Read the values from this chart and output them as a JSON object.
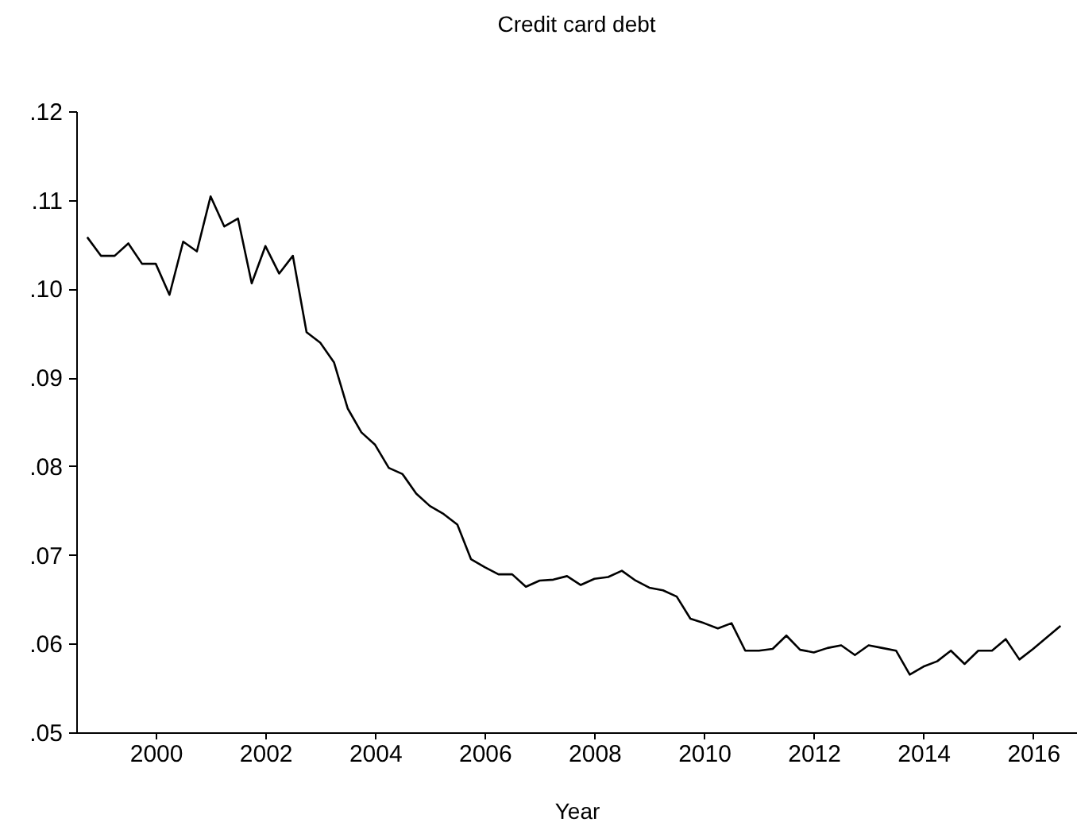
{
  "chart_data": {
    "type": "line",
    "title": "Credit card debt",
    "xlabel": "Year",
    "x": [
      1999,
      1999.25,
      1999.5,
      1999.75,
      2000,
      2000.25,
      2000.5,
      2000.75,
      2001,
      2001.25,
      2001.5,
      2001.75,
      2002,
      2002.25,
      2002.5,
      2002.75,
      2003,
      2003.25,
      2003.5,
      2003.75,
      2004,
      2004.25,
      2004.5,
      2004.75,
      2005,
      2005.25,
      2005.5,
      2005.75,
      2006,
      2006.25,
      2006.5,
      2006.75,
      2007,
      2007.25,
      2007.5,
      2007.75,
      2008,
      2008.25,
      2008.5,
      2008.75,
      2009,
      2009.25,
      2009.5,
      2009.75,
      2010,
      2010.25,
      2010.5,
      2010.75,
      2011,
      2011.25,
      2011.5,
      2011.75,
      2012,
      2012.25,
      2012.5,
      2012.75,
      2013,
      2013.25,
      2013.5,
      2013.75,
      2014,
      2014.25,
      2014.5,
      2014.75,
      2015,
      2015.25,
      2015.5,
      2015.75,
      2016,
      2016.25,
      2016.5,
      2016.75
    ],
    "series": [
      {
        "color": "#000000",
        "values": [
          0.1058,
          0.1037,
          0.1037,
          0.1051,
          0.1028,
          0.1028,
          0.0993,
          0.1053,
          0.1042,
          0.1104,
          0.107,
          0.1079,
          0.1006,
          0.1048,
          0.1017,
          0.1037,
          0.0951,
          0.0939,
          0.0917,
          0.0865,
          0.0838,
          0.0824,
          0.0798,
          0.0791,
          0.0769,
          0.0755,
          0.0746,
          0.0734,
          0.0695,
          0.0686,
          0.0678,
          0.0678,
          0.0664,
          0.0671,
          0.0672,
          0.0676,
          0.0666,
          0.0673,
          0.0675,
          0.0682,
          0.0671,
          0.0663,
          0.066,
          0.0653,
          0.0628,
          0.0623,
          0.0617,
          0.0623,
          0.0592,
          0.0592,
          0.0594,
          0.0609,
          0.0593,
          0.059,
          0.0595,
          0.0598,
          0.0587,
          0.0598,
          0.0595,
          0.0592,
          0.0565,
          0.0574,
          0.058,
          0.0592,
          0.0577,
          0.0592,
          0.0592,
          0.0605,
          0.0582,
          0.0594,
          0.0607,
          0.062
        ]
      }
    ],
    "xlim": [
      1998.8,
      2017.05
    ],
    "xticks": [
      {
        "value": 2000.25,
        "label": "2000"
      },
      {
        "value": 2002.25,
        "label": "2002"
      },
      {
        "value": 2004.25,
        "label": "2004"
      },
      {
        "value": 2006.25,
        "label": "2006"
      },
      {
        "value": 2008.25,
        "label": "2008"
      },
      {
        "value": 2010.25,
        "label": "2010"
      },
      {
        "value": 2012.25,
        "label": "2012"
      },
      {
        "value": 2014.25,
        "label": "2014"
      },
      {
        "value": 2016.25,
        "label": "2016"
      }
    ],
    "ylim": [
      0.05,
      0.12
    ],
    "yticks": [
      {
        "value": 0.05,
        "label": ".05"
      },
      {
        "value": 0.06,
        "label": ".06"
      },
      {
        "value": 0.07,
        "label": ".07"
      },
      {
        "value": 0.08,
        "label": ".08"
      },
      {
        "value": 0.09,
        "label": ".09"
      },
      {
        "value": 0.1,
        "label": ".10"
      },
      {
        "value": 0.11,
        "label": ".11"
      },
      {
        "value": 0.12,
        "label": ".12"
      }
    ],
    "grid": false,
    "legend": false,
    "marker": "none",
    "line_style": "solid"
  }
}
